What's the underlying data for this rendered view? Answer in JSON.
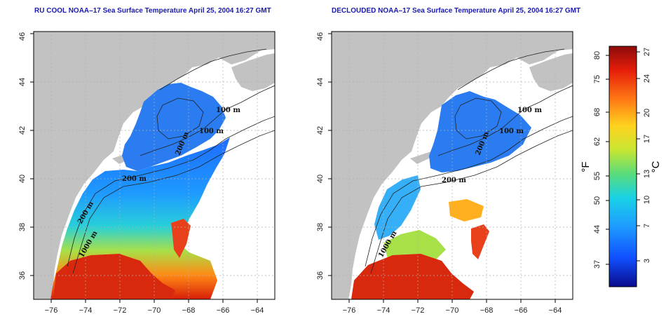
{
  "maps": [
    {
      "title": "RU COOL NOAA–17 Sea Surface Temperature April 25, 2004 16:27 GMT",
      "contour_labels": [
        "100 m",
        "100 m",
        "200 m",
        "200 m",
        "200 m",
        "1000 m"
      ]
    },
    {
      "title": "DECLOUDED NOAA–17 Sea Surface Temperature April 25, 2004 16:27 GMT",
      "contour_labels": [
        "100 m",
        "100 m",
        "200 m",
        "200 m",
        "1000 m"
      ]
    }
  ],
  "axes": {
    "x_ticks": [
      "−76",
      "−74",
      "−72",
      "−70",
      "−68",
      "−66",
      "−64"
    ],
    "y_ticks": [
      "36",
      "38",
      "40",
      "42",
      "44",
      "46"
    ]
  },
  "colorbar": {
    "fahrenheit_label": "°F",
    "celsius_label": "°C",
    "fahrenheit_ticks": [
      "80",
      "75",
      "68",
      "62",
      "55",
      "50",
      "44",
      "37"
    ],
    "celsius_ticks": [
      "27",
      "24",
      "20",
      "17",
      "13",
      "10",
      "7",
      "3"
    ],
    "colors": [
      "#0a0a8c",
      "#1050ff",
      "#1e9bff",
      "#19d2e6",
      "#5adc7a",
      "#c8e632",
      "#ffd21e",
      "#ff7814",
      "#e61e0a",
      "#8c0a0a"
    ]
  }
}
